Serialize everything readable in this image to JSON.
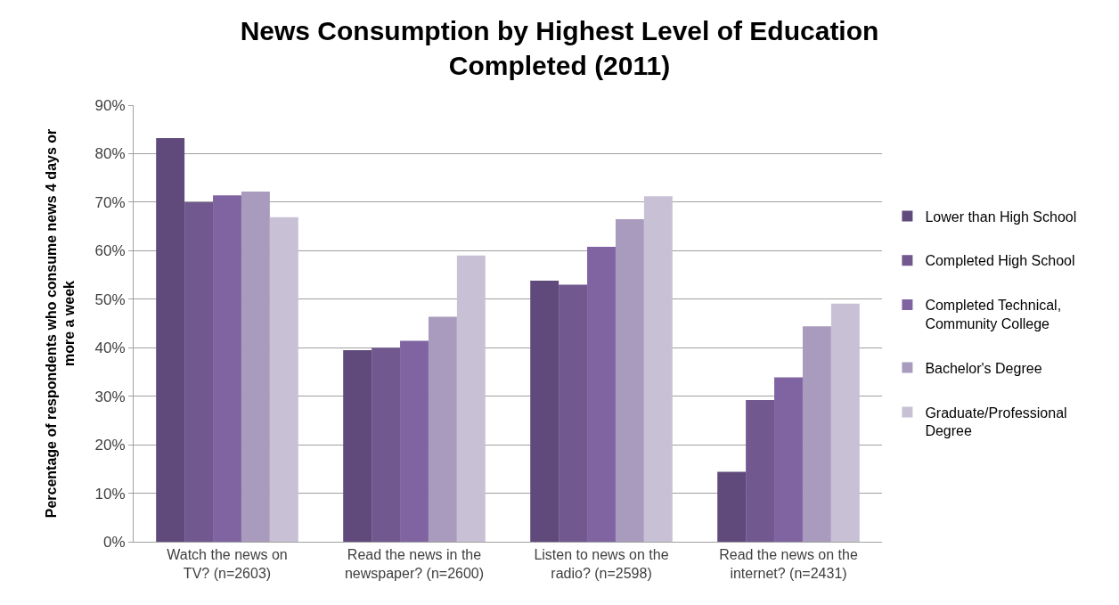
{
  "chart_data": {
    "type": "bar",
    "title": "News Consumption by Highest Level of Education Completed (2011)",
    "ylabel": "Percentage of respondents who consume news 4 days or more a week",
    "categories": [
      "Watch the news on TV? (n=2603)",
      "Read the news in the newspaper? (n=2600)",
      "Listen to news on the radio? (n=2598)",
      "Read the news on the internet? (n=2431)"
    ],
    "series": [
      {
        "name": "Lower than High School",
        "color": "#604a7b",
        "values": [
          83.2,
          39.5,
          53.8,
          14.4
        ]
      },
      {
        "name": "Completed High School",
        "color": "#71588f",
        "values": [
          70.0,
          40.0,
          53.0,
          29.2
        ]
      },
      {
        "name": "Completed Technical, Community College",
        "color": "#8064a2",
        "values": [
          71.4,
          41.4,
          60.8,
          33.9
        ]
      },
      {
        "name": "Bachelor's Degree",
        "color": "#a99bbd",
        "values": [
          72.2,
          46.4,
          66.5,
          44.4
        ]
      },
      {
        "name": "Graduate/Professional Degree",
        "color": "#c8c1d6",
        "values": [
          66.9,
          59.0,
          71.2,
          49.1
        ]
      }
    ],
    "ylim": [
      0,
      90
    ],
    "yticks": [
      {
        "value": 0,
        "label": "0%"
      },
      {
        "value": 10,
        "label": "10%"
      },
      {
        "value": 20,
        "label": "20%"
      },
      {
        "value": 30,
        "label": "30%"
      },
      {
        "value": 40,
        "label": "40%"
      },
      {
        "value": 50,
        "label": "50%"
      },
      {
        "value": 60,
        "label": "60%"
      },
      {
        "value": 70,
        "label": "70%"
      },
      {
        "value": 80,
        "label": "80%"
      },
      {
        "value": 90,
        "label": "90%"
      }
    ],
    "grid": "y",
    "legend": "right"
  }
}
